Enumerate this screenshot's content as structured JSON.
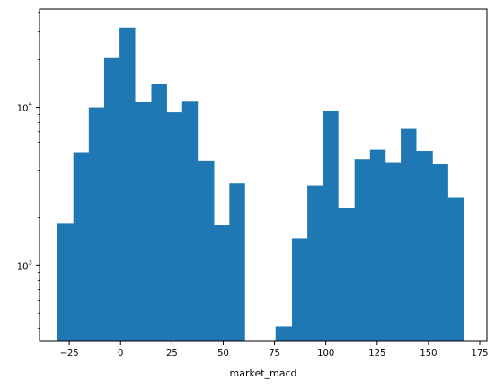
{
  "chart_data": {
    "type": "histogram",
    "title": "",
    "xlabel": "market_macd",
    "ylabel": "",
    "y_scale": "log",
    "grid": false,
    "legend": "none",
    "bar_color": "#1f77b4",
    "xlim": [
      -39.5,
      178.5
    ],
    "ylim": [
      330,
      42000
    ],
    "x_ticks": [
      {
        "value": -25,
        "label": "−25"
      },
      {
        "value": 0,
        "label": "0"
      },
      {
        "value": 25,
        "label": "25"
      },
      {
        "value": 50,
        "label": "50"
      },
      {
        "value": 75,
        "label": "75"
      },
      {
        "value": 100,
        "label": "100"
      },
      {
        "value": 125,
        "label": "125"
      },
      {
        "value": 150,
        "label": "150"
      },
      {
        "value": 175,
        "label": "175"
      }
    ],
    "y_ticks": [
      {
        "value": 1000,
        "base": "10",
        "exp": "3"
      },
      {
        "value": 10000,
        "base": "10",
        "exp": "4"
      }
    ],
    "bins": [
      {
        "x0": -31.0,
        "x1": -23.0,
        "count": 1850
      },
      {
        "x0": -23.0,
        "x1": -15.5,
        "count": 5200
      },
      {
        "x0": -15.5,
        "x1": -8.0,
        "count": 10000
      },
      {
        "x0": -8.0,
        "x1": -0.5,
        "count": 20500
      },
      {
        "x0": -0.5,
        "x1": 7.0,
        "count": 32000
      },
      {
        "x0": 7.0,
        "x1": 15.0,
        "count": 10900
      },
      {
        "x0": 15.0,
        "x1": 22.5,
        "count": 14000
      },
      {
        "x0": 22.5,
        "x1": 30.0,
        "count": 9300
      },
      {
        "x0": 30.0,
        "x1": 37.5,
        "count": 11000
      },
      {
        "x0": 37.5,
        "x1": 45.5,
        "count": 4600
      },
      {
        "x0": 45.5,
        "x1": 53.0,
        "count": 1800
      },
      {
        "x0": 53.0,
        "x1": 60.5,
        "count": 3300
      },
      {
        "x0": 60.5,
        "x1": 68.0,
        "count": 0
      },
      {
        "x0": 68.0,
        "x1": 75.5,
        "count": 0
      },
      {
        "x0": 75.5,
        "x1": 83.5,
        "count": 410
      },
      {
        "x0": 83.5,
        "x1": 91.0,
        "count": 1480
      },
      {
        "x0": 91.0,
        "x1": 98.5,
        "count": 3200
      },
      {
        "x0": 98.5,
        "x1": 106.0,
        "count": 9500
      },
      {
        "x0": 106.0,
        "x1": 114.0,
        "count": 2300
      },
      {
        "x0": 114.0,
        "x1": 121.5,
        "count": 4700
      },
      {
        "x0": 121.5,
        "x1": 129.0,
        "count": 5400
      },
      {
        "x0": 129.0,
        "x1": 136.5,
        "count": 4500
      },
      {
        "x0": 136.5,
        "x1": 144.0,
        "count": 7300
      },
      {
        "x0": 144.0,
        "x1": 152.0,
        "count": 5300
      },
      {
        "x0": 152.0,
        "x1": 159.5,
        "count": 4400
      },
      {
        "x0": 159.5,
        "x1": 167.0,
        "count": 2700
      }
    ]
  }
}
